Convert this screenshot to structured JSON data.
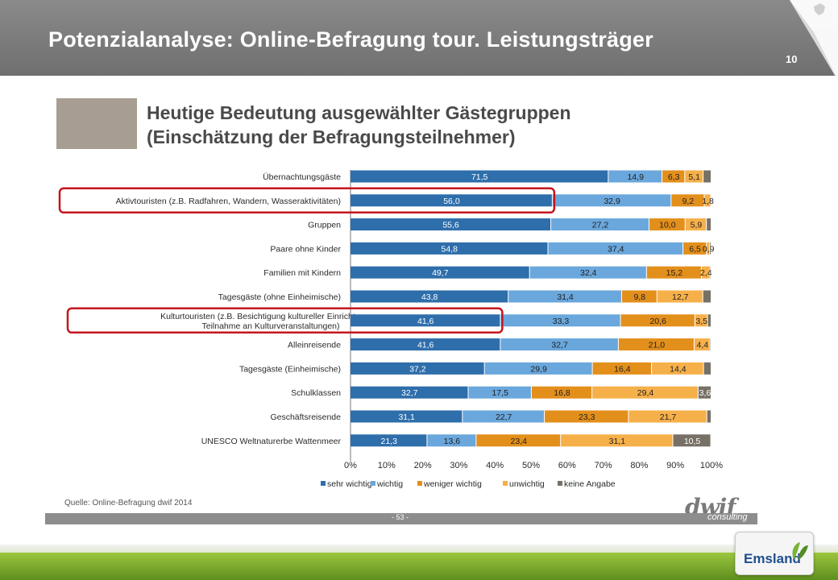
{
  "header": {
    "title": "Potenzialanalyse: Online-Befragung tour. Leistungsträger",
    "page_number": "10"
  },
  "logo": {
    "brand": "Emsland"
  },
  "slide": {
    "source": "Quelle: Online-Befragung dwif 2014",
    "page_label": "- 53 -",
    "publisher": "dwif",
    "publisher_sub": "consulting"
  },
  "chart_data": {
    "type": "bar",
    "orientation": "horizontal",
    "stacked": true,
    "title": [
      "Heutige Bedeutung ausgewählter Gästegruppen",
      "(Einschätzung der Befragungsteilnehmer)"
    ],
    "categories": [
      [
        "Übernachtungsgäste"
      ],
      [
        "Aktivtouristen  (z.B. Radfahren, Wandern, Wasseraktivitäten)"
      ],
      [
        "Gruppen"
      ],
      [
        "Paare ohne Kinder"
      ],
      [
        "Familien mit Kindern"
      ],
      [
        "Tagesgäste (ohne Einheimische)"
      ],
      [
        "Kulturtouristen  (z.B. Besichtigung kultureller Einrichtungen,",
        "Teilnahme an Kulturveranstaltungen)"
      ],
      [
        "Alleinreisende"
      ],
      [
        "Tagesgäste (Einheimische)"
      ],
      [
        "Schulklassen"
      ],
      [
        "Geschäftsreisende"
      ],
      [
        "UNESCO Weltnaturerbe Wattenmeer"
      ]
    ],
    "highlighted_categories": [
      1,
      6
    ],
    "series": [
      {
        "name": "sehr wichtig",
        "color": "#2e6eab",
        "values": [
          71.5,
          56.0,
          55.6,
          54.8,
          49.7,
          43.8,
          41.6,
          41.6,
          37.2,
          32.7,
          31.1,
          21.3
        ],
        "labels": [
          "71,5",
          "56,0",
          "55,6",
          "54,8",
          "49,7",
          "43,8",
          "41,6",
          "41,6",
          "37,2",
          "32,7",
          "31,1",
          "21,3"
        ]
      },
      {
        "name": "wichtig",
        "color": "#6aa7dc",
        "values": [
          14.9,
          32.9,
          27.2,
          37.4,
          32.4,
          31.4,
          33.3,
          32.7,
          29.9,
          17.5,
          22.7,
          13.6
        ],
        "labels": [
          "14,9",
          "32,9",
          "27,2",
          "37,4",
          "32,4",
          "31,4",
          "33,3",
          "32,7",
          "29,9",
          "17,5",
          "22,7",
          "13,6"
        ]
      },
      {
        "name": "weniger  wichtig",
        "color": "#e38f1c",
        "values": [
          6.3,
          9.2,
          10.0,
          6.5,
          15.2,
          9.8,
          20.6,
          21.0,
          16.4,
          16.8,
          23.3,
          23.4
        ],
        "labels": [
          "6,3",
          "9,2",
          "10,0",
          "6,5",
          "15,2",
          "9,8",
          "20,6",
          "21,0",
          "16,4",
          "16,8",
          "23,3",
          "23,4"
        ]
      },
      {
        "name": "unwichtig",
        "color": "#f6b04a",
        "values": [
          5.1,
          1.8,
          5.9,
          0.9,
          2.4,
          12.7,
          3.5,
          4.4,
          14.4,
          29.4,
          21.7,
          31.1
        ],
        "labels": [
          "5,1",
          "1,8",
          "5,9",
          "0,9",
          "2,4",
          "12,7",
          "3,5",
          "4,4",
          "14,4",
          "29,4",
          "21,7",
          "31,1"
        ]
      },
      {
        "name": "keine Angabe",
        "color": "#777067",
        "values": [
          2.2,
          0.1,
          1.3,
          0.4,
          0.3,
          2.3,
          1.0,
          0.3,
          2.1,
          3.6,
          1.2,
          10.5
        ],
        "labels": [
          "",
          "",
          "",
          "",
          "",
          "",
          "",
          "",
          "",
          "3,6",
          "",
          "10,5"
        ]
      }
    ],
    "xticks": [
      "0%",
      "10%",
      "20%",
      "30%",
      "40%",
      "50%",
      "60%",
      "70%",
      "80%",
      "90%",
      "100%"
    ],
    "xlim": [
      0,
      100
    ],
    "legend_position": "bottom"
  }
}
